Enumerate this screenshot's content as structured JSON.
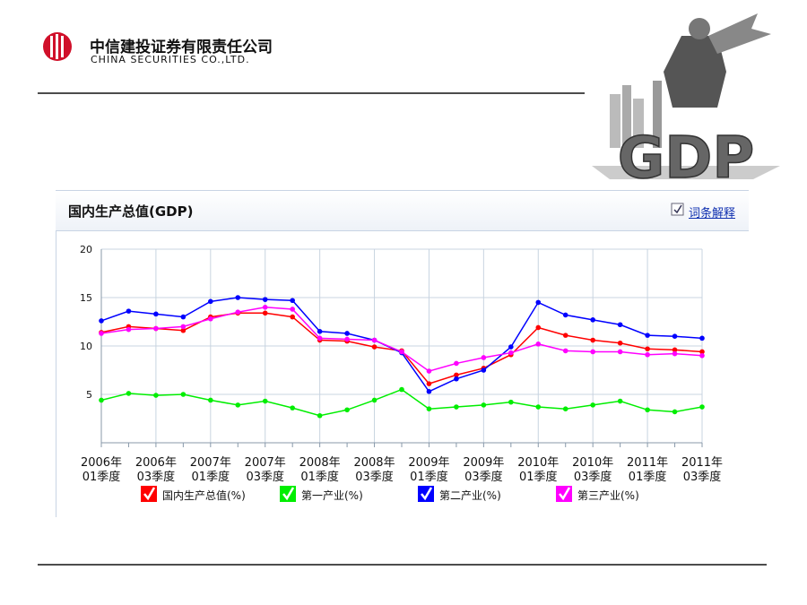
{
  "header": {
    "company_cn": "中信建投证券有限责任公司",
    "company_en": "CHINA SECURITIES CO.,LTD."
  },
  "image_label": "GDP",
  "panel": {
    "title": "国内生产总值(GDP)",
    "link": "词条解释"
  },
  "chart_data": {
    "type": "line",
    "categories": [
      "2006年\n01季度",
      null,
      "2006年\n03季度",
      null,
      "2007年\n01季度",
      null,
      "2007年\n03季度",
      null,
      "2008年\n01季度",
      null,
      "2008年\n03季度",
      null,
      "2009年\n01季度",
      null,
      "2009年\n03季度",
      null,
      "2010年\n01季度",
      null,
      "2010年\n03季度",
      null,
      "2011年\n01季度",
      null,
      "2011年\n03季度"
    ],
    "series": [
      {
        "name": "国内生产总值(%)",
        "color": "#ff0000",
        "values": [
          11.4,
          12.0,
          11.8,
          11.6,
          13.0,
          13.4,
          13.4,
          13.0,
          10.6,
          10.5,
          9.9,
          9.5,
          6.1,
          7.0,
          7.7,
          9.1,
          11.9,
          11.1,
          10.6,
          10.3,
          9.7,
          9.6,
          9.4
        ]
      },
      {
        "name": "第一产业(%)",
        "color": "#00ee00",
        "values": [
          4.4,
          5.1,
          4.9,
          5.0,
          4.4,
          3.9,
          4.3,
          3.6,
          2.8,
          3.4,
          4.4,
          5.5,
          3.5,
          3.7,
          3.9,
          4.2,
          3.7,
          3.5,
          3.9,
          4.3,
          3.4,
          3.2,
          3.7
        ]
      },
      {
        "name": "第二产业(%)",
        "color": "#0000ff",
        "values": [
          12.6,
          13.6,
          13.3,
          13.0,
          14.6,
          15.0,
          14.8,
          14.7,
          11.5,
          11.3,
          10.6,
          9.3,
          5.3,
          6.6,
          7.5,
          9.9,
          14.5,
          13.2,
          12.7,
          12.2,
          11.1,
          11.0,
          10.8
        ]
      },
      {
        "name": "第三产业(%)",
        "color": "#ff00ff",
        "values": [
          11.3,
          11.7,
          11.8,
          12.0,
          12.8,
          13.5,
          14.0,
          13.8,
          10.8,
          10.7,
          10.6,
          9.4,
          7.4,
          8.2,
          8.8,
          9.3,
          10.2,
          9.5,
          9.4,
          9.4,
          9.1,
          9.2,
          9.0
        ]
      }
    ],
    "ylim": [
      0,
      20
    ],
    "yticks": [
      5,
      10,
      15,
      20
    ],
    "grid": true
  }
}
